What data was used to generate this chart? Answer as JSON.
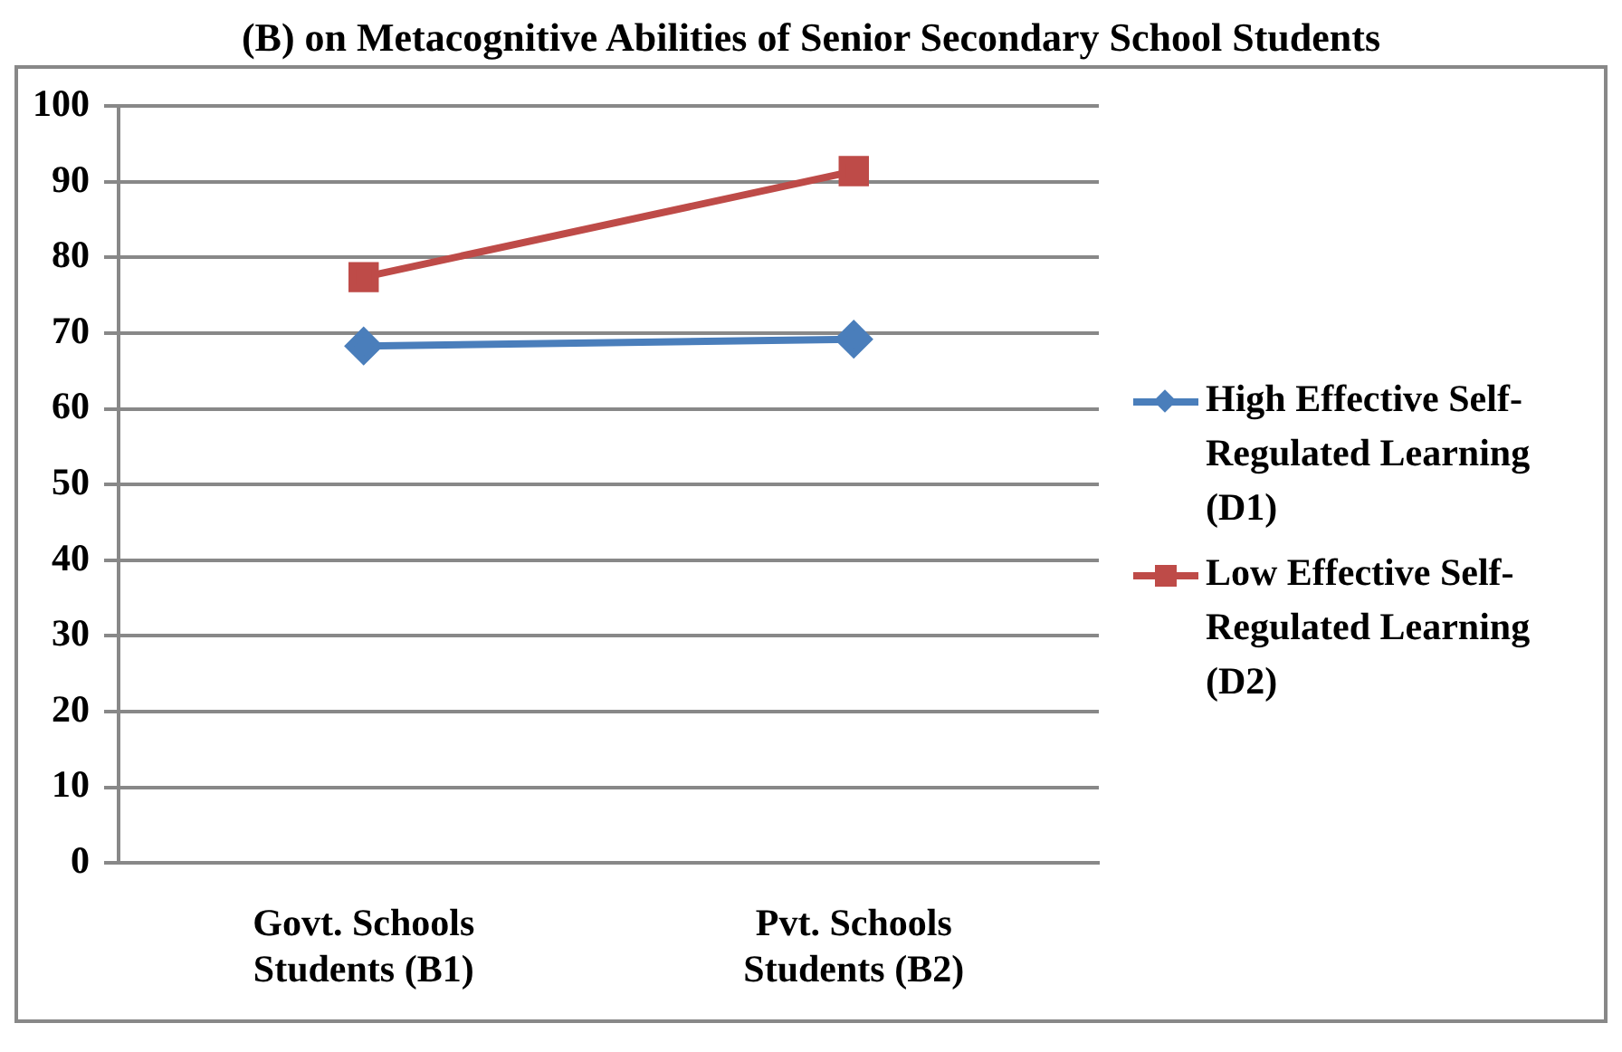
{
  "chart_data": {
    "type": "line",
    "title": "(B) on Metacognitive Abilities of Senior Secondary School Students",
    "categories": [
      "Govt. Schools Students (B1)",
      "Pvt. Schools Students (B2)"
    ],
    "series": [
      {
        "name": "High Effective Self-Regulated Learning (D1)",
        "color": "#4a7ebb",
        "values": [
          68.3,
          69.2
        ],
        "marker": "diamond"
      },
      {
        "name": "Low Effective Self-Regulated Learning (D2)",
        "color": "#be4b48",
        "values": [
          77.4,
          91.4
        ],
        "marker": "square"
      }
    ],
    "ylim": [
      0,
      100
    ],
    "yticks": [
      0,
      10,
      20,
      30,
      40,
      50,
      60,
      70,
      80,
      90,
      100
    ],
    "grid": "y",
    "legend": "right"
  }
}
